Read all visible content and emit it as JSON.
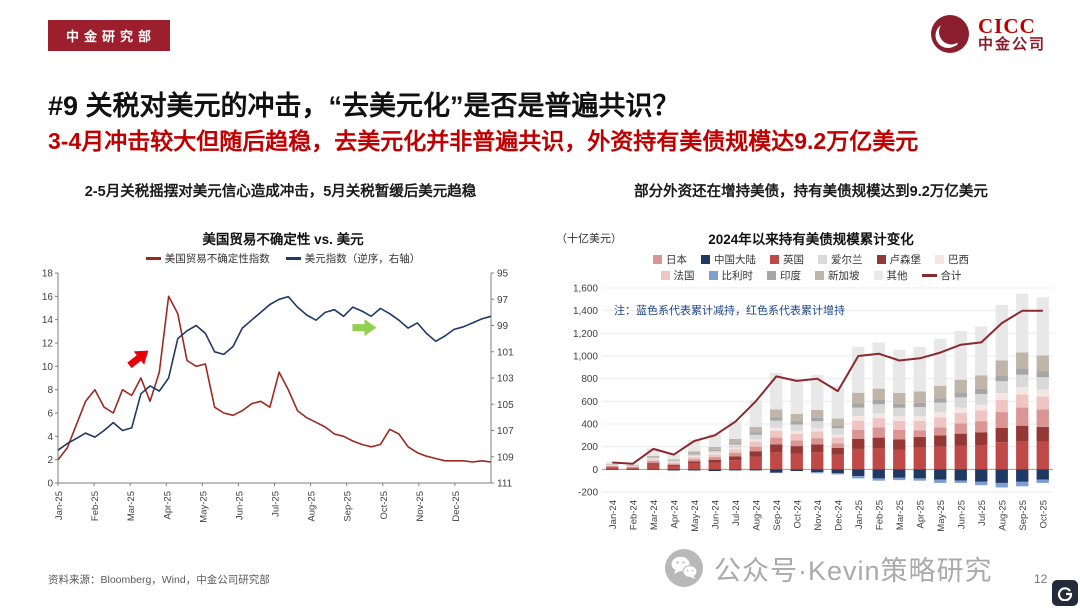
{
  "header": {
    "dept_badge": "中金研究部",
    "logo_text": "CICC",
    "logo_subtext": "中金公司"
  },
  "title": "#9 关税对美元的冲击，“去美元化”是否是普遍共识？",
  "subtitle": "3-4月冲击较大但随后趋稳，去美元化并非普遍共识，外资持有美债规模达9.2万亿美元",
  "sections": {
    "left_caption": "2-5月关税摇摆对美元信心造成冲击，5月关税暂缓后美元趋稳",
    "right_caption": "部分外资还在增持美债，持有美债规模达到9.2万亿美元"
  },
  "footer": {
    "source": "资料来源：Bloomberg，Wind，中金公司研究部",
    "watermark": "公众号·Kevin策略研究",
    "page_number": "12",
    "corner_logo": "格隆汇"
  },
  "chart_data": [
    {
      "type": "line",
      "title": "美国贸易不确定性 vs. 美元",
      "x_labels": [
        "Jan-25",
        "Feb-25",
        "Mar-25",
        "Apr-25",
        "May-25",
        "Jun-25",
        "Jul-25",
        "Aug-25",
        "Sep-25",
        "Oct-25",
        "Nov-25",
        "Dec-25"
      ],
      "left_axis": {
        "min": 0,
        "max": 18,
        "step": 2
      },
      "right_axis": {
        "min": 95,
        "max": 111,
        "step": 2,
        "note": "displayed inverted (95 at top)"
      },
      "legend_position": "top",
      "grid": false,
      "series": [
        {
          "name": "美国贸易不确定性指数",
          "axis": "left",
          "color": "#9c2a21",
          "values": [
            2.0,
            3.0,
            5.0,
            7.0,
            8.0,
            6.5,
            6.0,
            8.0,
            7.5,
            9.0,
            7.0,
            9.5,
            16.0,
            14.5,
            10.5,
            10.0,
            10.2,
            6.5,
            6.0,
            5.8,
            6.2,
            6.8,
            7.0,
            6.5,
            9.5,
            8.0,
            6.2,
            5.6,
            5.2,
            4.8,
            4.2,
            4.0,
            3.6,
            3.3,
            3.1,
            3.3,
            4.6,
            4.2,
            3.1,
            2.6,
            2.3,
            2.1,
            1.9,
            1.9,
            1.9,
            1.8,
            1.9,
            1.8
          ]
        },
        {
          "name": "美元指数（逆序，右轴）",
          "axis": "right",
          "color": "#203864",
          "values": [
            108.5,
            108.0,
            107.6,
            107.2,
            107.5,
            107.0,
            106.4,
            107.0,
            106.8,
            104.2,
            103.6,
            104.0,
            103.0,
            100.0,
            99.4,
            99.0,
            99.6,
            101.0,
            101.2,
            100.6,
            99.2,
            98.6,
            98.0,
            97.4,
            97.0,
            96.8,
            97.6,
            98.2,
            98.6,
            98.0,
            97.8,
            98.3,
            97.6,
            97.9,
            98.3,
            97.7,
            98.1,
            98.6,
            99.2,
            98.8,
            99.6,
            100.2,
            99.8,
            99.3,
            99.1,
            98.8,
            98.5,
            98.3
          ]
        }
      ],
      "annotations": [
        {
          "shape": "arrow",
          "color": "#e8000d",
          "fx": 0.165,
          "fy": 0.44,
          "angle": -38
        },
        {
          "shape": "arrow",
          "color": "#92d050",
          "fx": 0.68,
          "fy": 0.26,
          "angle": 0
        }
      ]
    },
    {
      "type": "bar",
      "title": "2024年以来持有美债规模累计变化",
      "unit_label": "（十亿美元）",
      "note": "注：蓝色系代表累计减持，红色系代表累计增持",
      "x_labels": [
        "Jan-24",
        "Feb-24",
        "Mar-24",
        "Apr-24",
        "May-24",
        "Jun-24",
        "Jul-24",
        "Aug-24",
        "Sep-24",
        "Oct-24",
        "Nov-24",
        "Dec-24",
        "Jan-25",
        "Feb-25",
        "Mar-25",
        "Apr-25",
        "May-25",
        "Jun-25",
        "Jul-25",
        "Aug-25",
        "Sep-25",
        "Oct-25"
      ],
      "y_axis": {
        "min": -200,
        "max": 1600,
        "step": 200
      },
      "grid": true,
      "series": [
        {
          "name": "英国",
          "color": "#bf4946",
          "values": [
            15,
            10,
            40,
            30,
            50,
            60,
            80,
            110,
            150,
            140,
            150,
            130,
            180,
            185,
            175,
            190,
            200,
            210,
            215,
            240,
            250,
            245
          ]
        },
        {
          "name": "卢森堡",
          "color": "#953735",
          "values": [
            5,
            5,
            15,
            10,
            20,
            25,
            35,
            50,
            70,
            65,
            70,
            60,
            90,
            95,
            90,
            95,
            100,
            105,
            110,
            125,
            135,
            130
          ]
        },
        {
          "name": "日本",
          "color": "#d99694",
          "values": [
            10,
            5,
            20,
            10,
            20,
            25,
            30,
            40,
            60,
            50,
            55,
            40,
            80,
            90,
            85,
            60,
            70,
            90,
            100,
            140,
            160,
            155
          ]
        },
        {
          "name": "法国",
          "color": "#eec5c3",
          "values": [
            5,
            5,
            12,
            10,
            18,
            22,
            30,
            45,
            60,
            58,
            60,
            52,
            80,
            82,
            78,
            82,
            88,
            92,
            95,
            108,
            115,
            112
          ]
        },
        {
          "name": "巴西",
          "color": "#f3e6e5",
          "values": [
            2,
            2,
            5,
            5,
            8,
            10,
            15,
            20,
            30,
            28,
            30,
            25,
            40,
            42,
            40,
            42,
            45,
            48,
            50,
            60,
            65,
            63
          ]
        },
        {
          "name": "爱尔兰",
          "color": "#d9d9d9",
          "values": [
            5,
            5,
            10,
            10,
            15,
            20,
            30,
            40,
            60,
            55,
            60,
            55,
            75,
            80,
            75,
            80,
            85,
            90,
            95,
            105,
            110,
            108
          ]
        },
        {
          "name": "印度",
          "color": "#a6a6a6",
          "values": [
            2,
            2,
            5,
            4,
            8,
            10,
            14,
            20,
            28,
            26,
            28,
            24,
            36,
            38,
            36,
            38,
            40,
            44,
            46,
            52,
            56,
            54
          ]
        },
        {
          "name": "新加坡",
          "color": "#bfb5a9",
          "values": [
            5,
            5,
            12,
            10,
            20,
            25,
            35,
            50,
            70,
            68,
            72,
            62,
            95,
            100,
            95,
            100,
            108,
            112,
            118,
            132,
            140,
            138
          ]
        },
        {
          "name": "其他",
          "color": "#e8e8e8",
          "values": [
            16,
            16,
            66,
            51,
            101,
            118,
            161,
            235,
            322,
            305,
            310,
            287,
            404,
            408,
            381,
            393,
            414,
            429,
            431,
            488,
            519,
            515
          ]
        },
        {
          "name": "中国大陆",
          "color": "#1f3864",
          "values": [
            -5,
            -5,
            -5,
            -10,
            -10,
            -15,
            -10,
            -10,
            -30,
            -15,
            -25,
            -35,
            -60,
            -80,
            -75,
            -80,
            -90,
            -100,
            -110,
            -120,
            -110,
            -90
          ]
        },
        {
          "name": "比利时",
          "color": "#7f9ed1",
          "values": [
            0,
            0,
            0,
            0,
            0,
            0,
            0,
            0,
            0,
            0,
            -10,
            -10,
            -20,
            -20,
            -20,
            -20,
            -30,
            -20,
            -30,
            -40,
            -40,
            -30
          ]
        }
      ],
      "total_line": {
        "name": "合计",
        "color": "#8b2a2e",
        "values": [
          60,
          50,
          180,
          130,
          250,
          300,
          420,
          600,
          820,
          780,
          800,
          690,
          1000,
          1020,
          960,
          980,
          1030,
          1100,
          1120,
          1290,
          1400,
          1400
        ]
      },
      "legend_rows": [
        [
          {
            "label": "日本",
            "color": "#d99694",
            "kind": "box"
          },
          {
            "label": "中国大陆",
            "color": "#1f3864",
            "kind": "box"
          },
          {
            "label": "英国",
            "color": "#bf4946",
            "kind": "box"
          },
          {
            "label": "爱尔兰",
            "color": "#d9d9d9",
            "kind": "box"
          },
          {
            "label": "卢森堡",
            "color": "#953735",
            "kind": "box"
          },
          {
            "label": "巴西",
            "color": "#f3e6e5",
            "kind": "box"
          }
        ],
        [
          {
            "label": "法国",
            "color": "#eec5c3",
            "kind": "box"
          },
          {
            "label": "比利时",
            "color": "#7f9ed1",
            "kind": "box"
          },
          {
            "label": "印度",
            "color": "#a6a6a6",
            "kind": "box"
          },
          {
            "label": "新加坡",
            "color": "#bfb5a9",
            "kind": "box"
          },
          {
            "label": "其他",
            "color": "#e8e8e8",
            "kind": "box"
          },
          {
            "label": "合计",
            "color": "#8b2a2e",
            "kind": "line"
          }
        ]
      ]
    }
  ],
  "colors": {
    "brand_red": "#9c1f2e",
    "subtitle_red": "#c00000",
    "note_blue": "#1c4587",
    "negative_tick_red": "#c00000"
  }
}
